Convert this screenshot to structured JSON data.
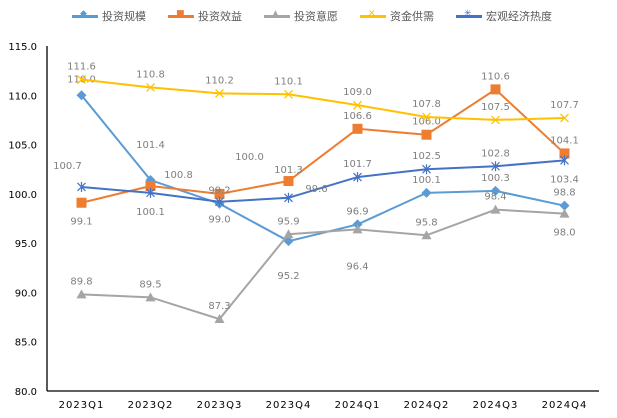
{
  "chart_data": {
    "type": "line",
    "title": "",
    "xlabel": "",
    "ylabel": "",
    "categories": [
      "2023Q1",
      "2023Q2",
      "2023Q3",
      "2023Q4",
      "2024Q1",
      "2024Q2",
      "2024Q3",
      "2024Q4"
    ],
    "ylim": [
      80,
      115
    ],
    "yticks": [
      "80.0",
      "85.0",
      "90.0",
      "95.0",
      "100.0",
      "105.0",
      "110.0",
      "115.0"
    ],
    "grid": false,
    "legend_position": "top",
    "data_labels": true,
    "series": [
      {
        "name": "投资规模",
        "color": "#5B9BD5",
        "marker": "diamond",
        "values": [
          110.0,
          101.4,
          99.0,
          95.2,
          96.9,
          100.1,
          100.3,
          98.8
        ]
      },
      {
        "name": "投资效益",
        "color": "#ED7D31",
        "marker": "square",
        "values": [
          99.1,
          100.8,
          100.0,
          101.3,
          106.6,
          106.0,
          110.6,
          104.1
        ]
      },
      {
        "name": "投资意愿",
        "color": "#A5A5A5",
        "marker": "triangle",
        "values": [
          89.8,
          89.5,
          87.3,
          95.9,
          96.4,
          95.8,
          98.4,
          98.0
        ]
      },
      {
        "name": "资金供需",
        "color": "#FFC000",
        "marker": "x",
        "values": [
          111.6,
          110.8,
          110.2,
          110.1,
          109.0,
          107.8,
          107.5,
          107.7
        ]
      },
      {
        "name": "宏观经济热度",
        "color": "#4472C4",
        "marker": "star",
        "values": [
          100.7,
          100.1,
          99.2,
          99.6,
          101.7,
          102.5,
          102.8,
          103.4
        ]
      }
    ]
  }
}
